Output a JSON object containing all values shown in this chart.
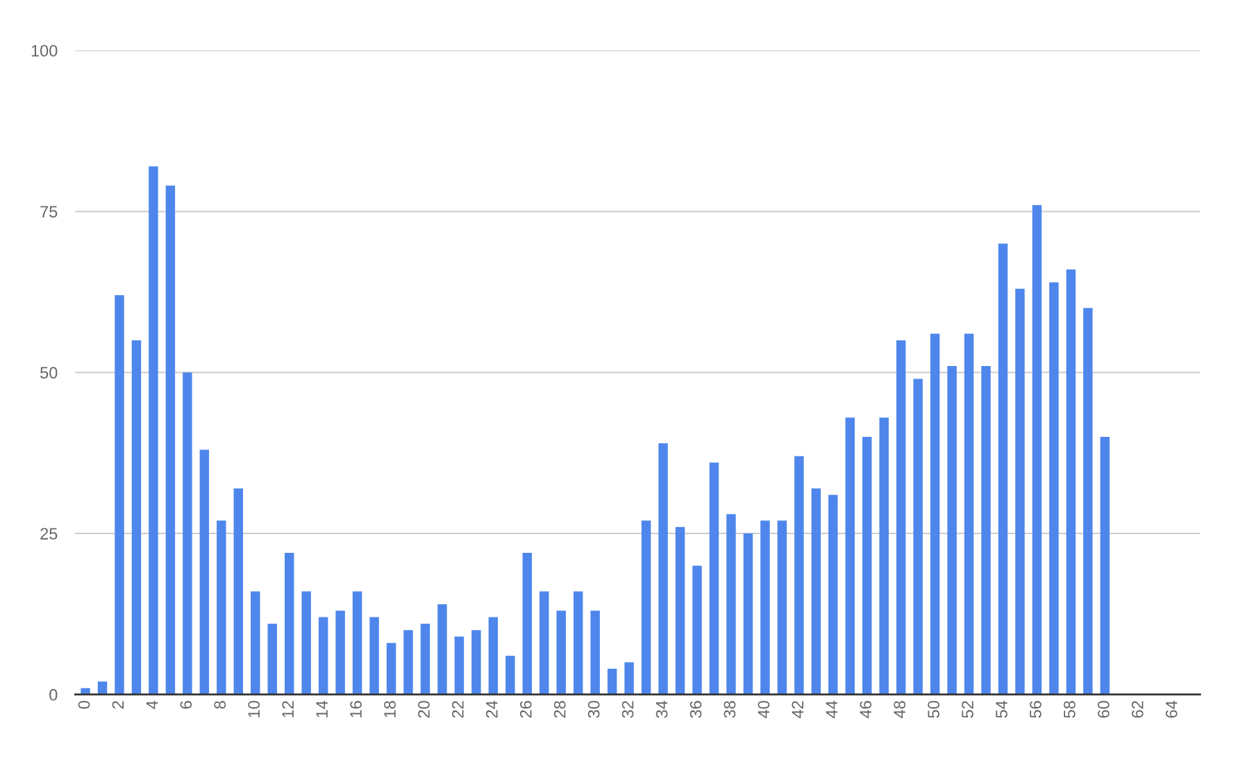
{
  "chart_data": {
    "type": "bar",
    "categories": [
      "0",
      null,
      "2",
      null,
      "4",
      null,
      "6",
      null,
      "8",
      null,
      "10",
      null,
      "12",
      null,
      "14",
      null,
      "16",
      null,
      "18",
      null,
      "20",
      null,
      "22",
      null,
      "24",
      null,
      "26",
      null,
      "28",
      null,
      "30",
      null,
      "32",
      null,
      "34",
      null,
      "36",
      null,
      "38",
      null,
      "40",
      null,
      "42",
      null,
      "44",
      null,
      "46",
      null,
      "48",
      null,
      "50",
      null,
      "52",
      null,
      "54",
      null,
      "56",
      null,
      "58",
      null,
      "60",
      null,
      "62",
      null,
      "64",
      null
    ],
    "values": [
      1,
      2,
      62,
      55,
      82,
      79,
      50,
      38,
      27,
      32,
      16,
      11,
      22,
      16,
      12,
      13,
      16,
      12,
      8,
      10,
      11,
      14,
      9,
      10,
      12,
      6,
      22,
      16,
      13,
      16,
      13,
      4,
      5,
      27,
      39,
      26,
      20,
      36,
      28,
      25,
      27,
      27,
      37,
      32,
      31,
      43,
      40,
      43,
      55,
      49,
      56,
      51,
      56,
      51,
      70,
      63,
      76,
      64,
      66,
      60,
      40,
      null,
      null,
      null,
      null,
      null
    ],
    "color": "#4e86ec",
    "ylim": [
      0,
      100
    ],
    "yticks": [
      0,
      25,
      50,
      75,
      100
    ],
    "grid": "y",
    "legend": false
  }
}
